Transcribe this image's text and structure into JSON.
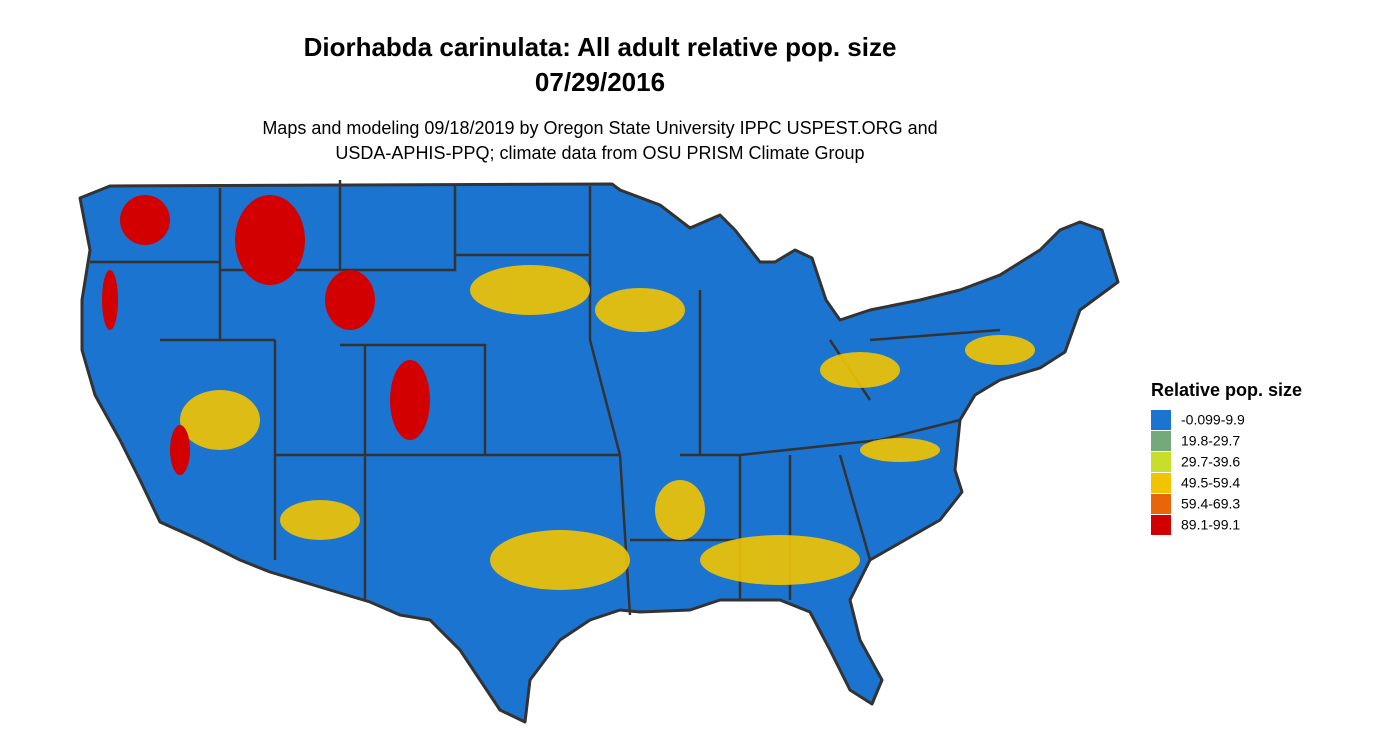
{
  "header": {
    "title": [
      "Diorhabda carinulata: All adult relative pop. size",
      "07/29/2016"
    ],
    "subtitle": [
      "Maps and modeling 09/18/2019 by Oregon State University IPPC USPEST.ORG and",
      "USDA-APHIS-PPQ; climate data from OSU PRISM Climate Group"
    ]
  },
  "legend": {
    "title": "Relative pop. size",
    "items": [
      {
        "label": "-0.099-9.9",
        "color": "#1b74d0"
      },
      {
        "label": "19.8-29.7",
        "color": "#74a97c"
      },
      {
        "label": "29.7-39.6",
        "color": "#c9de2a"
      },
      {
        "label": "49.5-59.4",
        "color": "#f2c400"
      },
      {
        "label": "59.4-69.3",
        "color": "#e8650a"
      },
      {
        "label": "89.1-99.1",
        "color": "#d20000"
      }
    ]
  }
}
